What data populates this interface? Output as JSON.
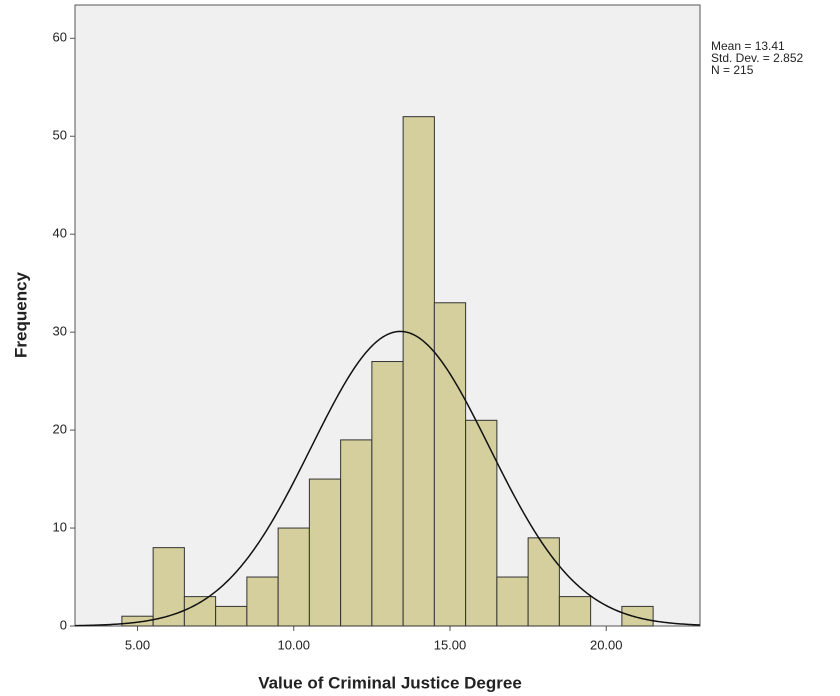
{
  "chart_data": {
    "type": "histogram",
    "xlabel": "Value of Criminal Justice Degree",
    "ylabel": "Frequency",
    "bins": [
      4.5,
      5.5,
      6.5,
      7.5,
      8.5,
      9.5,
      10.5,
      11.5,
      12.5,
      13.5,
      14.5,
      15.5,
      16.5,
      17.5,
      18.5,
      19.5,
      20.5,
      21.5
    ],
    "values": [
      1,
      8,
      3,
      2,
      5,
      10,
      15,
      19,
      27,
      52,
      33,
      21,
      5,
      9,
      3,
      0,
      2
    ],
    "color": "#d4cf9c",
    "xlim": [
      3,
      23
    ],
    "ylim": [
      0,
      63.4
    ],
    "xticks": [
      {
        "value": 5,
        "label": "5.00"
      },
      {
        "value": 10,
        "label": "10.00"
      },
      {
        "value": 15,
        "label": "15.00"
      },
      {
        "value": 20,
        "label": "20.00"
      }
    ],
    "yticks": [
      0,
      10,
      20,
      30,
      40,
      50,
      60
    ],
    "annotations": [
      "Mean = 13.41",
      "Std. Dev. = 2.852",
      "N = 215"
    ],
    "normal_curve": {
      "mean": 13.41,
      "std_dev": 2.852,
      "n": 215
    }
  }
}
